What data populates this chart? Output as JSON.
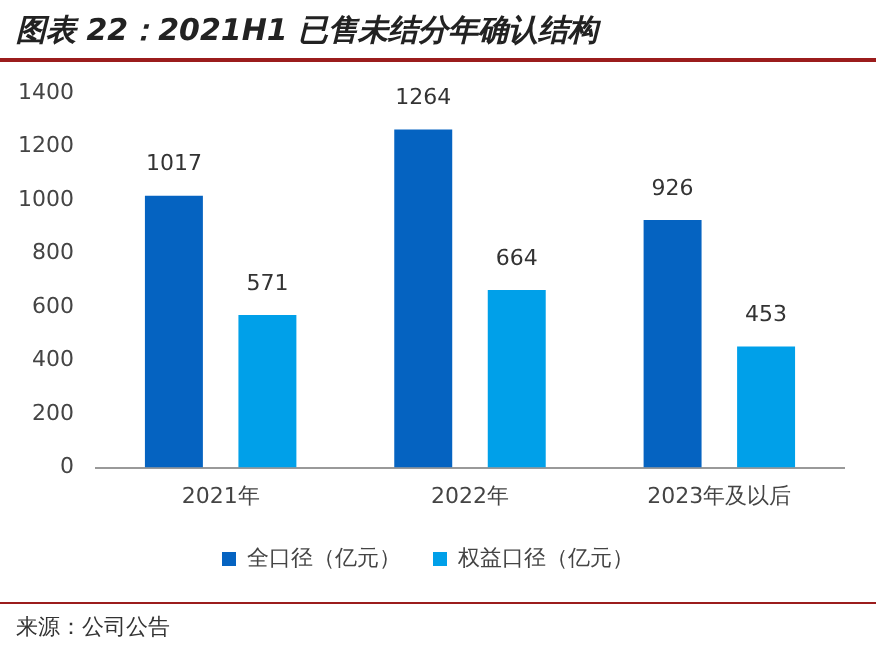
{
  "chart_data": {
    "type": "bar",
    "title": "图表 22：2021H1 已售未结分年确认结构",
    "categories": [
      "2021年",
      "2022年",
      "2023年及以后"
    ],
    "series": [
      {
        "name": "全口径（亿元）",
        "color": "#0563c1",
        "values": [
          1017,
          1264,
          926
        ]
      },
      {
        "name": "权益口径（亿元）",
        "color": "#00a0e9",
        "values": [
          571,
          664,
          453
        ]
      }
    ],
    "ylim": [
      0,
      1400
    ],
    "yticks": [
      0,
      200,
      400,
      600,
      800,
      1000,
      1200,
      1400
    ],
    "grid": false,
    "legend": "bottom",
    "data_labels": true,
    "annotations": [
      "来源：公司公告"
    ]
  }
}
